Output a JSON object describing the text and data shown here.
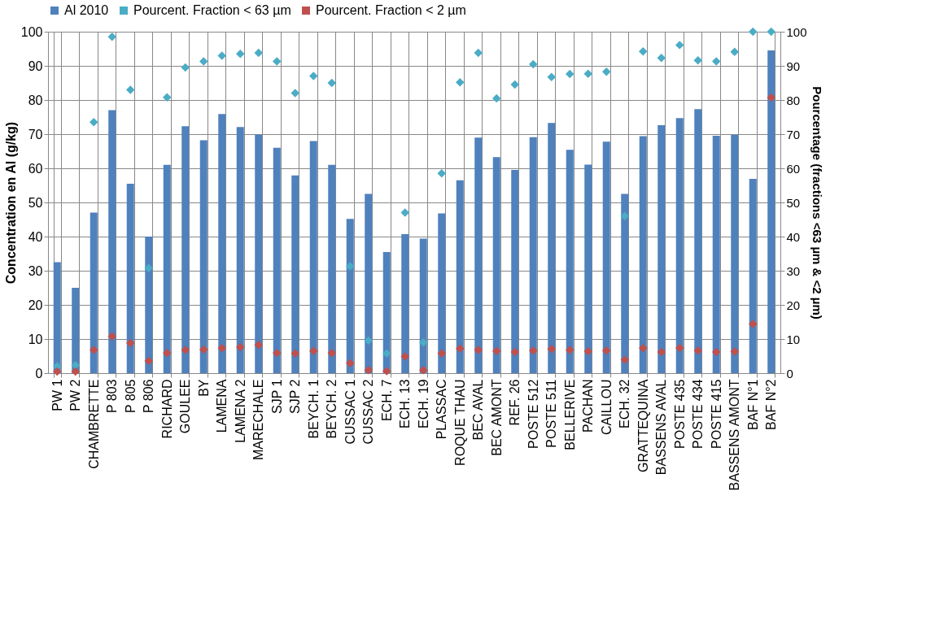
{
  "chart_data": {
    "type": "bar",
    "ylabel": "Concentration en Al (g/kg)",
    "y2label": "Pourcentage (fractions <63 µm & <2 µm)",
    "categories": [
      "PW 1",
      "PW 2",
      "CHAMBRETTE",
      "P 803",
      "P 805",
      "P 806",
      "RICHARD",
      "GOULEE",
      "BY",
      "LAMENA",
      "LAMENA 2",
      "MARECHALE",
      "SJP 1",
      "SJP 2",
      "BEYCH. 1",
      "BEYCH. 2",
      "CUSSAC 1",
      "CUSSAC 2",
      "ECH. 7",
      "ECH. 13",
      "ECH. 19",
      "PLASSAC",
      "ROQUE THAU",
      "BEC AVAL",
      "BEC AMONT",
      "REF. 26",
      "POSTE 512",
      "POSTE 511",
      "BELLERIVE",
      "PACHAN",
      "CAILLOU",
      "ECH. 32",
      "GRATTEQUINA",
      "BASSENS AVAL",
      "POSTE 435",
      "POSTE 434",
      "POSTE 415",
      "BASSENS AMONT",
      "BAF N°1",
      "BAF N°2"
    ],
    "series": [
      {
        "name": "Al 2010",
        "color": "#4f81bd",
        "values": [
          32.5,
          25,
          47,
          77,
          55.5,
          40,
          61,
          72.3,
          68.2,
          75.9,
          72.1,
          69.9,
          66,
          57.9,
          68,
          61,
          45.2,
          52.5,
          35.5,
          40.7,
          39.4,
          46.8,
          56.5,
          69,
          63.3,
          59.5,
          69.1,
          73.3,
          65.4,
          61.1,
          67.8,
          52.5,
          69.4,
          72.6,
          74.7,
          77.3,
          69.5,
          69.8,
          56.9,
          94.5
        ]
      },
      {
        "name": "Pourcent. Fraction < 63 µm",
        "type": "scatter",
        "axis": "y2",
        "color": "#4bacc6",
        "values": [
          2,
          2.3,
          73.5,
          98.5,
          83,
          30.8,
          80.8,
          89.5,
          91.3,
          93,
          93.5,
          93.8,
          91.3,
          82,
          87,
          85,
          31.3,
          9.5,
          5.8,
          47,
          9,
          58.5,
          85.2,
          93.8,
          80.5,
          84.5,
          90.5,
          86.7,
          87.6,
          87.7,
          88.3,
          46,
          94.2,
          92.3,
          96.1,
          91.6,
          91.3,
          94.1,
          100,
          100
        ]
      },
      {
        "name": "Pourcent. Fraction < 2 µm",
        "type": "scatter",
        "axis": "y2",
        "color": "#c0504d",
        "values": [
          0.5,
          0.5,
          6.8,
          10.8,
          8.8,
          3.6,
          5.9,
          6.8,
          6.9,
          7.3,
          7.6,
          8.3,
          5.9,
          5.8,
          6.5,
          5.9,
          2.9,
          0.9,
          0.6,
          4.9,
          0.9,
          5.8,
          7.2,
          6.8,
          6.5,
          6.2,
          6.6,
          7.1,
          6.8,
          6.4,
          6.6,
          3.9,
          7.3,
          6.2,
          7.4,
          6.6,
          6.2,
          6.3,
          14.4,
          80.7
        ]
      }
    ],
    "ylim": [
      0,
      100
    ],
    "yticks": [
      0,
      10,
      20,
      30,
      40,
      50,
      60,
      70,
      80,
      90,
      100
    ],
    "y2lim": [
      0,
      100
    ],
    "y2ticks": [
      0,
      10,
      20,
      30,
      40,
      50,
      60,
      70,
      80,
      90,
      100
    ],
    "marker": "diamond",
    "grid": true,
    "legend": "top"
  }
}
